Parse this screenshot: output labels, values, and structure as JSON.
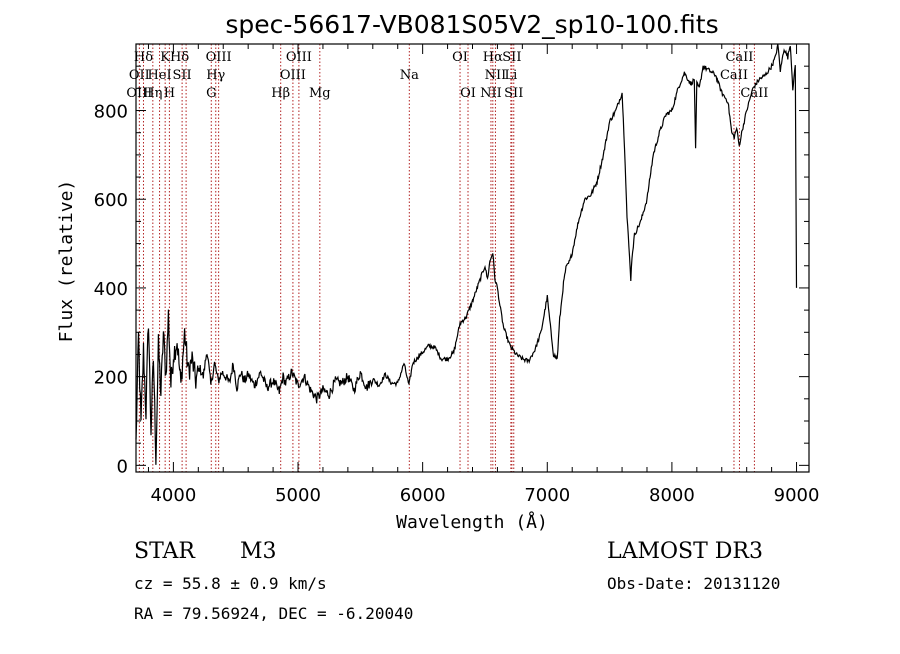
{
  "chart_data": {
    "type": "line",
    "title": "spec-56617-VB081S05V2_sp10-100.fits",
    "xlabel": "Wavelength (Å)",
    "ylabel": "Flux (relative)",
    "xlim": [
      3700,
      9100
    ],
    "ylim": [
      -15,
      950
    ],
    "xticks": [
      4000,
      5000,
      6000,
      7000,
      8000,
      9000
    ],
    "yticks": [
      0,
      200,
      400,
      600,
      800
    ],
    "series": [
      {
        "name": "spectrum",
        "x": [
          3700,
          3720,
          3740,
          3760,
          3780,
          3800,
          3820,
          3840,
          3860,
          3880,
          3900,
          3920,
          3940,
          3960,
          3980,
          4000,
          4030,
          4060,
          4090,
          4120,
          4150,
          4180,
          4210,
          4240,
          4270,
          4300,
          4330,
          4360,
          4390,
          4420,
          4450,
          4480,
          4510,
          4540,
          4570,
          4600,
          4650,
          4700,
          4750,
          4800,
          4850,
          4880,
          4900,
          4950,
          5000,
          5050,
          5100,
          5150,
          5200,
          5250,
          5300,
          5350,
          5400,
          5450,
          5500,
          5550,
          5600,
          5650,
          5700,
          5750,
          5800,
          5850,
          5890,
          5920,
          5950,
          6000,
          6050,
          6100,
          6150,
          6200,
          6250,
          6300,
          6350,
          6400,
          6450,
          6500,
          6520,
          6540,
          6563,
          6580,
          6600,
          6620,
          6650,
          6700,
          6750,
          6800,
          6850,
          6900,
          6950,
          7000,
          7030,
          7050,
          7080,
          7100,
          7130,
          7150,
          7180,
          7200,
          7250,
          7300,
          7350,
          7400,
          7450,
          7500,
          7550,
          7600,
          7620,
          7640,
          7660,
          7670,
          7680,
          7700,
          7750,
          7800,
          7850,
          7900,
          7950,
          8000,
          8050,
          8100,
          8150,
          8180,
          8190,
          8200,
          8220,
          8250,
          8300,
          8350,
          8400,
          8450,
          8480,
          8500,
          8520,
          8540,
          8560,
          8600,
          8650,
          8700,
          8750,
          8800,
          8830,
          8850,
          8870,
          8900,
          8930,
          8950,
          8970,
          8990,
          9000
        ],
        "values": [
          50,
          290,
          90,
          260,
          120,
          330,
          80,
          240,
          20,
          270,
          160,
          300,
          200,
          340,
          180,
          250,
          280,
          180,
          300,
          210,
          240,
          190,
          220,
          200,
          260,
          180,
          230,
          190,
          210,
          200,
          185,
          230,
          175,
          210,
          190,
          205,
          180,
          210,
          175,
          190,
          165,
          200,
          185,
          210,
          180,
          200,
          170,
          150,
          170,
          160,
          190,
          185,
          200,
          170,
          210,
          175,
          195,
          180,
          205,
          185,
          185,
          230,
          180,
          230,
          240,
          255,
          270,
          265,
          240,
          240,
          255,
          320,
          335,
          370,
          410,
          450,
          420,
          460,
          480,
          420,
          400,
          360,
          310,
          270,
          250,
          240,
          235,
          260,
          300,
          380,
          300,
          250,
          240,
          330,
          410,
          445,
          460,
          480,
          550,
          600,
          610,
          640,
          700,
          775,
          800,
          840,
          720,
          560,
          470,
          420,
          470,
          520,
          550,
          600,
          700,
          750,
          790,
          800,
          850,
          885,
          860,
          870,
          710,
          860,
          850,
          900,
          890,
          880,
          840,
          820,
          750,
          740,
          760,
          720,
          750,
          800,
          850,
          870,
          880,
          900,
          920,
          950,
          890,
          940,
          920,
          950,
          850,
          900,
          400
        ]
      }
    ],
    "annotations": [
      {
        "label": "Hδ",
        "x": 3760,
        "row": 0
      },
      {
        "label": "K",
        "x": 3934,
        "row": 0
      },
      {
        "label": "Hδ",
        "x": 4050,
        "row": 0
      },
      {
        "label": "OIII",
        "x": 4363,
        "row": 0
      },
      {
        "label": "OIII",
        "x": 5007,
        "row": 0
      },
      {
        "label": "OI",
        "x": 6300,
        "row": 0
      },
      {
        "label": "Hα",
        "x": 6563,
        "row": 0
      },
      {
        "label": "SII",
        "x": 6716,
        "row": 0
      },
      {
        "label": "CaII",
        "x": 8542,
        "row": 0
      },
      {
        "label": "OII",
        "x": 3727,
        "row": 1
      },
      {
        "label": "HeI",
        "x": 3889,
        "row": 1
      },
      {
        "label": "SII",
        "x": 4070,
        "row": 1
      },
      {
        "label": "Hγ",
        "x": 4340,
        "row": 1
      },
      {
        "label": "OIII",
        "x": 4959,
        "row": 1
      },
      {
        "label": "Na",
        "x": 5893,
        "row": 1
      },
      {
        "label": "NII",
        "x": 6584,
        "row": 1
      },
      {
        "label": "Li",
        "x": 6708,
        "row": 1
      },
      {
        "label": "CaII",
        "x": 8498,
        "row": 1
      },
      {
        "label": "OIII",
        "x": 3727,
        "row": 2
      },
      {
        "label": "Hη",
        "x": 3835,
        "row": 2
      },
      {
        "label": "H",
        "x": 3968,
        "row": 2
      },
      {
        "label": "G",
        "x": 4304,
        "row": 2
      },
      {
        "label": "Hβ",
        "x": 4861,
        "row": 2
      },
      {
        "label": "Mg",
        "x": 5175,
        "row": 2
      },
      {
        "label": "OI",
        "x": 6364,
        "row": 2
      },
      {
        "label": "NII",
        "x": 6548,
        "row": 2
      },
      {
        "label": "SII",
        "x": 6731,
        "row": 2
      },
      {
        "label": "CaII",
        "x": 8662,
        "row": 2
      }
    ],
    "line_markers": [
      3727,
      3760,
      3835,
      3889,
      3934,
      3968,
      4070,
      4102,
      4304,
      4340,
      4363,
      4861,
      4959,
      5007,
      5175,
      5893,
      6300,
      6364,
      6548,
      6563,
      6584,
      6708,
      6716,
      6731,
      8498,
      8542,
      8662
    ]
  },
  "info": {
    "object_class": "STAR",
    "subclass": "M3",
    "survey": "LAMOST DR3",
    "cz_line": "cz = 55.8 ± 0.9 km/s",
    "obs_date": "Obs-Date: 20131120",
    "coords": "RA =  79.56924, DEC =  -6.20040"
  },
  "colors": {
    "spectrum": "#000000",
    "line_marker": "#b22222",
    "axis": "#000000",
    "background": "#ffffff"
  }
}
